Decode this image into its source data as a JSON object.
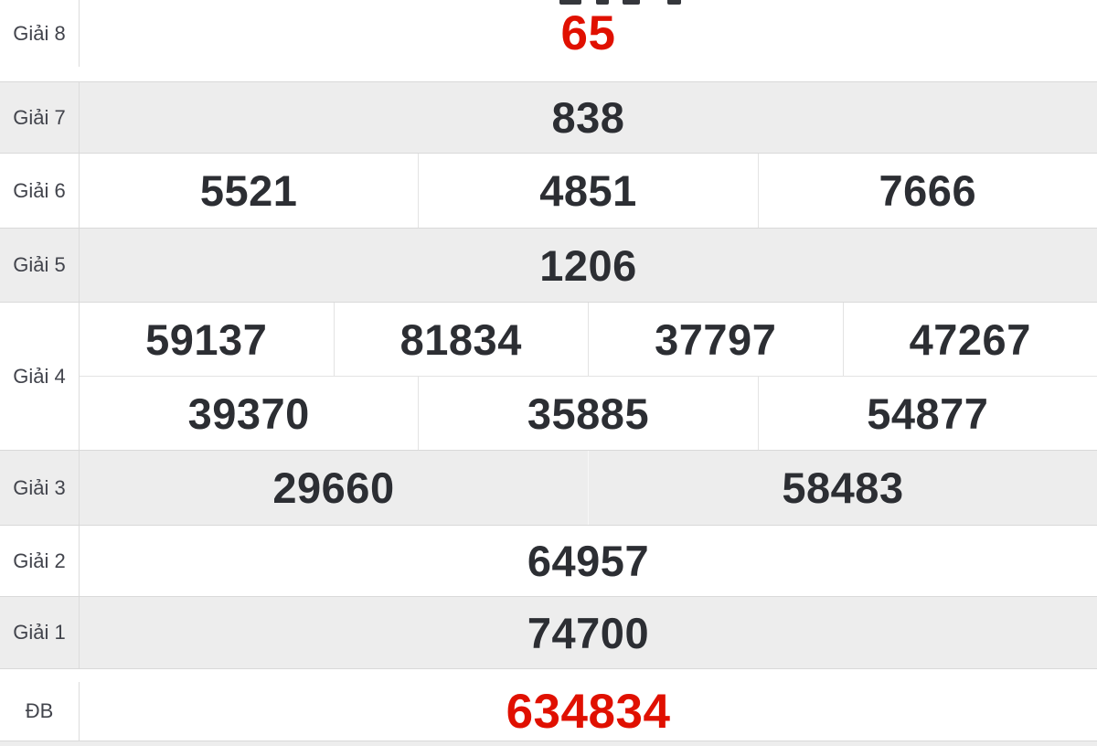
{
  "lottery": {
    "rows": [
      {
        "id": "giai-8",
        "label": "Giải 8",
        "values": [
          "65"
        ],
        "highlight": true
      },
      {
        "id": "giai-7",
        "label": "Giải 7",
        "values": [
          "838"
        ],
        "highlight": false
      },
      {
        "id": "giai-6",
        "label": "Giải 6",
        "values": [
          "5521",
          "4851",
          "7666"
        ],
        "highlight": false
      },
      {
        "id": "giai-5",
        "label": "Giải 5",
        "values": [
          "1206"
        ],
        "highlight": false
      },
      {
        "id": "giai-4",
        "label": "Giải 4",
        "lines": [
          [
            "59137",
            "81834",
            "37797",
            "47267"
          ],
          [
            "39370",
            "35885",
            "54877"
          ]
        ],
        "highlight": false
      },
      {
        "id": "giai-3",
        "label": "Giải 3",
        "values": [
          "29660",
          "58483"
        ],
        "highlight": false
      },
      {
        "id": "giai-2",
        "label": "Giải 2",
        "values": [
          "64957"
        ],
        "highlight": false
      },
      {
        "id": "giai-1",
        "label": "Giải 1",
        "values": [
          "74700"
        ],
        "highlight": false
      },
      {
        "id": "db",
        "label": "ĐB",
        "values": [
          "634834"
        ],
        "highlight": true
      }
    ],
    "colors": {
      "highlight_red": "#e01000",
      "number_dark": "#2c2e33",
      "label_text": "#42444c",
      "alt_row_bg": "#ededed",
      "border": "#d9d9d9"
    }
  }
}
